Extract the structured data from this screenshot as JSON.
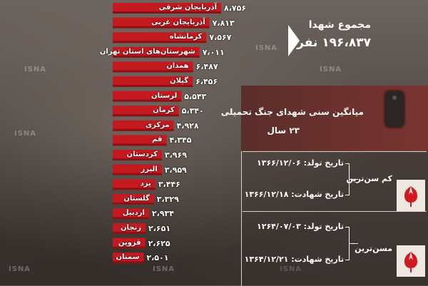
{
  "watermark": "ISNA",
  "colors": {
    "bar": "#c4191f",
    "bar_shadow": "#8c1014",
    "panel_head": "#6a302c"
  },
  "chart_data": {
    "type": "bar",
    "orientation": "horizontal",
    "categories": [
      "آذربایجان شرقی",
      "آذربایجان غربی",
      "کرمانشاه",
      "شهرستان‌های استان تهران",
      "همدان",
      "گیلان",
      "لرستان",
      "کرمان",
      "مرکزی",
      "قم",
      "کردستان",
      "البرز",
      "یزد",
      "گلستان",
      "اردبیل",
      "زنجان",
      "قزوین",
      "سمنان"
    ],
    "value_labels": [
      "۸،۷۵۶",
      "۷،۸۱۳",
      "۷،۵۶۷",
      "۷،۰۱۱",
      "۶،۴۸۷",
      "۶،۴۵۶",
      "۵،۵۴۳",
      "۵،۳۴۰",
      "۴،۹۲۸",
      "۴،۳۴۵",
      "۳،۹۶۹",
      "۳،۹۵۹",
      "۳،۴۴۶",
      "۳،۳۲۹",
      "۲،۹۳۴",
      "۲،۶۵۱",
      "۲،۶۲۵",
      "۲،۵۰۱"
    ],
    "values": [
      8756,
      7813,
      7567,
      7011,
      6487,
      6456,
      5543,
      5340,
      4928,
      4345,
      3969,
      3959,
      3446,
      3329,
      2934,
      2651,
      2625,
      2501
    ]
  },
  "total": {
    "title": "مجموع شهدا",
    "value": "۱۹۶،۸۳۷ نفر"
  },
  "average": {
    "title": "میانگین سنی شهدای جنگ تحمیلی",
    "value": "۲۳ سال"
  },
  "youngest": {
    "label": "کم سن‌ترین",
    "birth": "تاریخ تولد: ۱۳۶۶/۱۲/۰۶",
    "martyrdom": "تاریخ شهادت: ۱۳۶۶/۱۲/۱۸"
  },
  "oldest": {
    "label": "مسن‌ترین",
    "birth": "تاریخ تولد: ۱۲۶۴/۰۷/۰۳",
    "martyrdom": "تاریخ شهادت: ۱۳۶۴/۱۲/۲۱"
  }
}
